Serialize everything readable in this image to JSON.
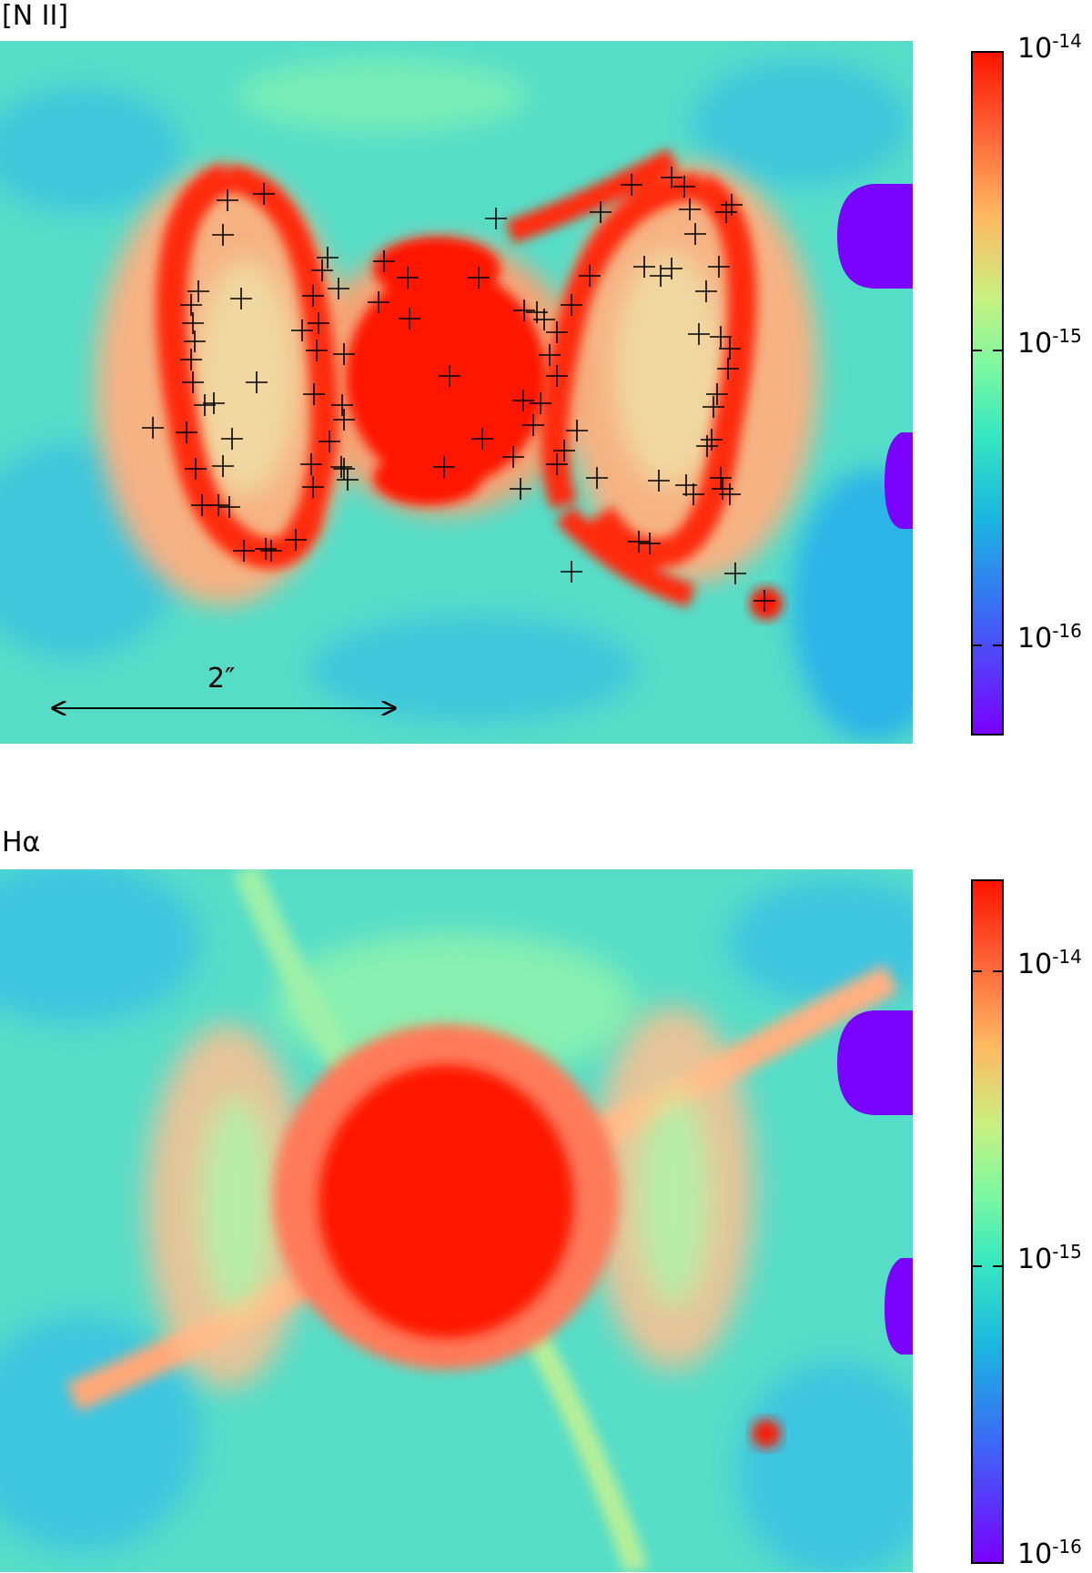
{
  "panels": [
    {
      "title": "[N II]",
      "colorbar": {
        "labels": [
          {
            "base": "10",
            "exp": "-14"
          },
          {
            "base": "10",
            "exp": "-15"
          },
          {
            "base": "10",
            "exp": "-16"
          }
        ]
      },
      "scale_bar": {
        "label": "2″"
      },
      "markers": "plus"
    },
    {
      "title": "Hα",
      "colorbar": {
        "labels": [
          {
            "base": "10",
            "exp": "-14"
          },
          {
            "base": "10",
            "exp": "-15"
          },
          {
            "base": "10",
            "exp": "-16"
          }
        ]
      }
    }
  ],
  "colors": {
    "background_field": "#56ddc8",
    "emission_core": "#ff1400",
    "emission_halo": "#ff9a70",
    "masked_region": "#7a00ff"
  }
}
